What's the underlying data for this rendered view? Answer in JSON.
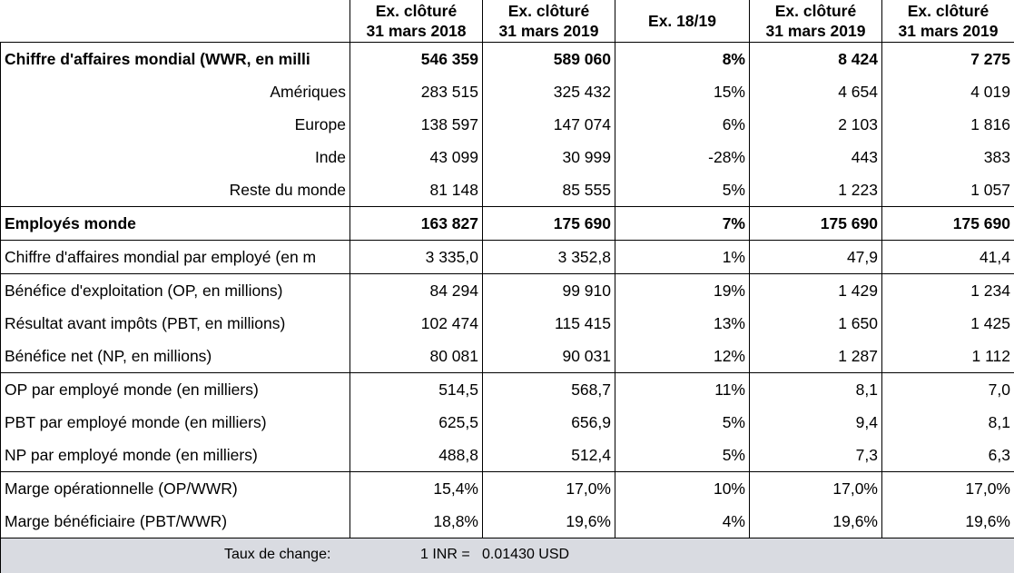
{
  "header": {
    "col1": [
      "Ex. clôturé",
      "31 mars 2018"
    ],
    "col2": [
      "Ex. clôturé",
      "31 mars 2019"
    ],
    "col3": "Ex. 18/19",
    "col4": [
      "Ex. clôturé",
      "31 mars 2019"
    ],
    "col5": [
      "Ex. clôturé",
      "31 mars 2019"
    ]
  },
  "rows": [
    {
      "label": "Chiffre d'affaires mondial (WWR, en milli",
      "v": [
        "546 359",
        "589 060",
        "8%",
        "8 424",
        "7 275"
      ]
    },
    {
      "label": "Amériques",
      "v": [
        "283 515",
        "325 432",
        "15%",
        "4 654",
        "4 019"
      ]
    },
    {
      "label": "Europe",
      "v": [
        "138 597",
        "147 074",
        "6%",
        "2 103",
        "1 816"
      ]
    },
    {
      "label": "Inde",
      "v": [
        "43 099",
        "30 999",
        "-28%",
        "443",
        "383"
      ]
    },
    {
      "label": "Reste du monde",
      "v": [
        "81 148",
        "85 555",
        "5%",
        "1 223",
        "1 057"
      ]
    },
    {
      "label": "Employés monde",
      "v": [
        "163 827",
        "175 690",
        "7%",
        "175 690",
        "175 690"
      ]
    },
    {
      "label": "Chiffre d'affaires mondial par employé (en m",
      "v": [
        "3 335,0",
        "3 352,8",
        "1%",
        "47,9",
        "41,4"
      ]
    },
    {
      "label": "Bénéfice d'exploitation (OP, en millions)",
      "v": [
        "84 294",
        "99 910",
        "19%",
        "1 429",
        "1 234"
      ]
    },
    {
      "label": "Résultat avant impôts (PBT, en millions)",
      "v": [
        "102 474",
        "115 415",
        "13%",
        "1 650",
        "1 425"
      ]
    },
    {
      "label": "Bénéfice net (NP, en millions)",
      "v": [
        "80 081",
        "90 031",
        "12%",
        "1 287",
        "1 112"
      ]
    },
    {
      "label": "OP par employé monde (en milliers)",
      "v": [
        "514,5",
        "568,7",
        "11%",
        "8,1",
        "7,0"
      ]
    },
    {
      "label": "PBT par employé monde (en milliers)",
      "v": [
        "625,5",
        "656,9",
        "5%",
        "9,4",
        "8,1"
      ]
    },
    {
      "label": "NP par employé monde (en milliers)",
      "v": [
        "488,8",
        "512,4",
        "5%",
        "7,3",
        "6,3"
      ]
    },
    {
      "label": "Marge opérationnelle (OP/WWR)",
      "v": [
        "15,4%",
        "17,0%",
        "10%",
        "17,0%",
        "17,0%"
      ]
    },
    {
      "label": "Marge bénéficiaire (PBT/WWR)",
      "v": [
        "18,8%",
        "19,6%",
        "4%",
        "19,6%",
        "19,6%"
      ]
    }
  ],
  "footer": {
    "label": "Taux de change:",
    "rate": "1 INR =   0.01430 USD"
  }
}
